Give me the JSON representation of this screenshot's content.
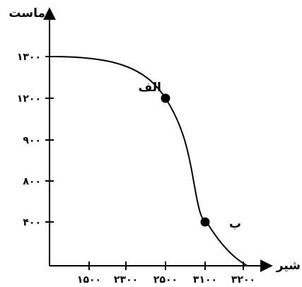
{
  "chart_data": {
    "type": "line",
    "title": "",
    "xlabel": "شیر",
    "ylabel": "ماست",
    "x_ticks": [
      {
        "value": 1500,
        "label": "۱۵۰۰"
      },
      {
        "value": 2300,
        "label": "۲۳۰۰"
      },
      {
        "value": 2500,
        "label": "۲۵۰۰"
      },
      {
        "value": 3100,
        "label": "۳۱۰۰"
      },
      {
        "value": 3200,
        "label": "۳۲۰۰"
      }
    ],
    "y_ticks": [
      {
        "value": 400,
        "label": "۴۰۰"
      },
      {
        "value": 800,
        "label": "۸۰۰"
      },
      {
        "value": 900,
        "label": "۹۰۰"
      },
      {
        "value": 1200,
        "label": "۱۲۰۰"
      },
      {
        "value": 1300,
        "label": "۱۳۰۰"
      }
    ],
    "points": [
      {
        "label": "الف",
        "x": 2500,
        "y": 1200
      },
      {
        "label": "ب",
        "x": 3100,
        "y": 400
      }
    ],
    "grid": false,
    "legend": "none"
  }
}
